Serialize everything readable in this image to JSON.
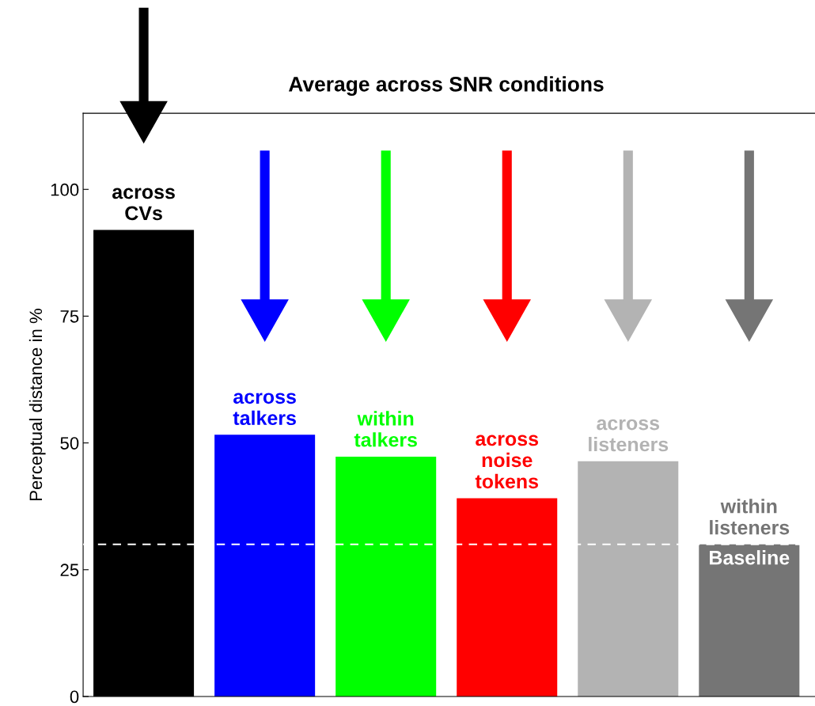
{
  "chart_data": {
    "type": "bar",
    "title": "Average across SNR conditions",
    "ylabel": "Perceptual distance in %",
    "categories": [
      "across\nCVs",
      "across\ntalkers",
      "within\ntalkers",
      "across\nnoise\ntokens",
      "across\nlisteners",
      "within\nlisteners"
    ],
    "values": [
      92,
      51.6,
      47.3,
      39.1,
      46.4,
      30
    ],
    "colors": [
      "#000000",
      "#0000ff",
      "#00ff00",
      "#ff0000",
      "#b3b3b3",
      "#757575"
    ],
    "ylim": [
      0,
      115
    ],
    "yticks": [
      0,
      25,
      50,
      75,
      100
    ],
    "ref_lines": [
      {
        "axis": "y",
        "value": 30,
        "label": "Baseline",
        "color": "#ffffff",
        "line_style": "dashed"
      }
    ],
    "grid": false
  }
}
